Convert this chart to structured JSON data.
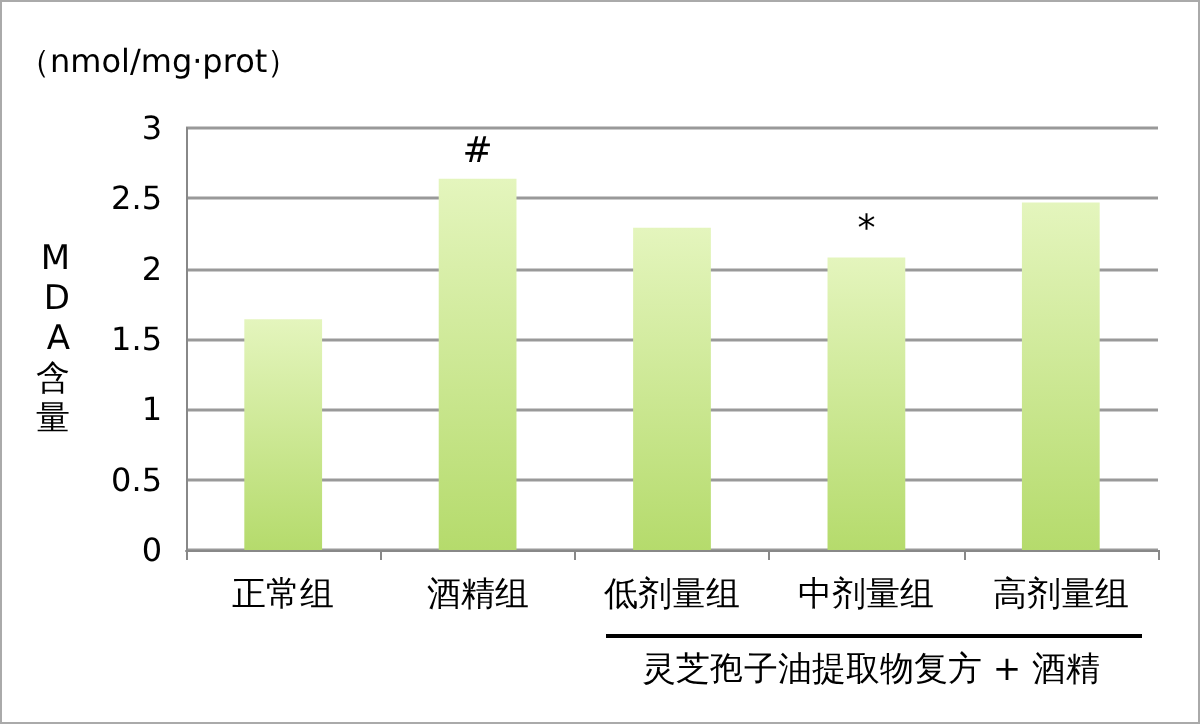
{
  "chart_data": {
    "type": "bar",
    "ylabel": "MDA含量",
    "categories": [
      "正常组",
      "酒精组",
      "低剂量组",
      "中剂量组",
      "高剂量组"
    ],
    "values": [
      1.64,
      2.64,
      2.29,
      2.08,
      2.47
    ],
    "color": "#b5db6c",
    "ylim": [
      0,
      3
    ],
    "yticks": [
      0,
      0.5,
      1,
      1.5,
      2,
      2.5,
      3
    ],
    "grid": "y",
    "annotations": [
      "（nmol/mg·prot）",
      {
        "text": "#",
        "x": "酒精组",
        "y": 2.64
      },
      {
        "text": "*",
        "x": "中剂量组",
        "y": 2.08
      },
      "灵芝孢子油提取物复方 + 酒精"
    ]
  }
}
